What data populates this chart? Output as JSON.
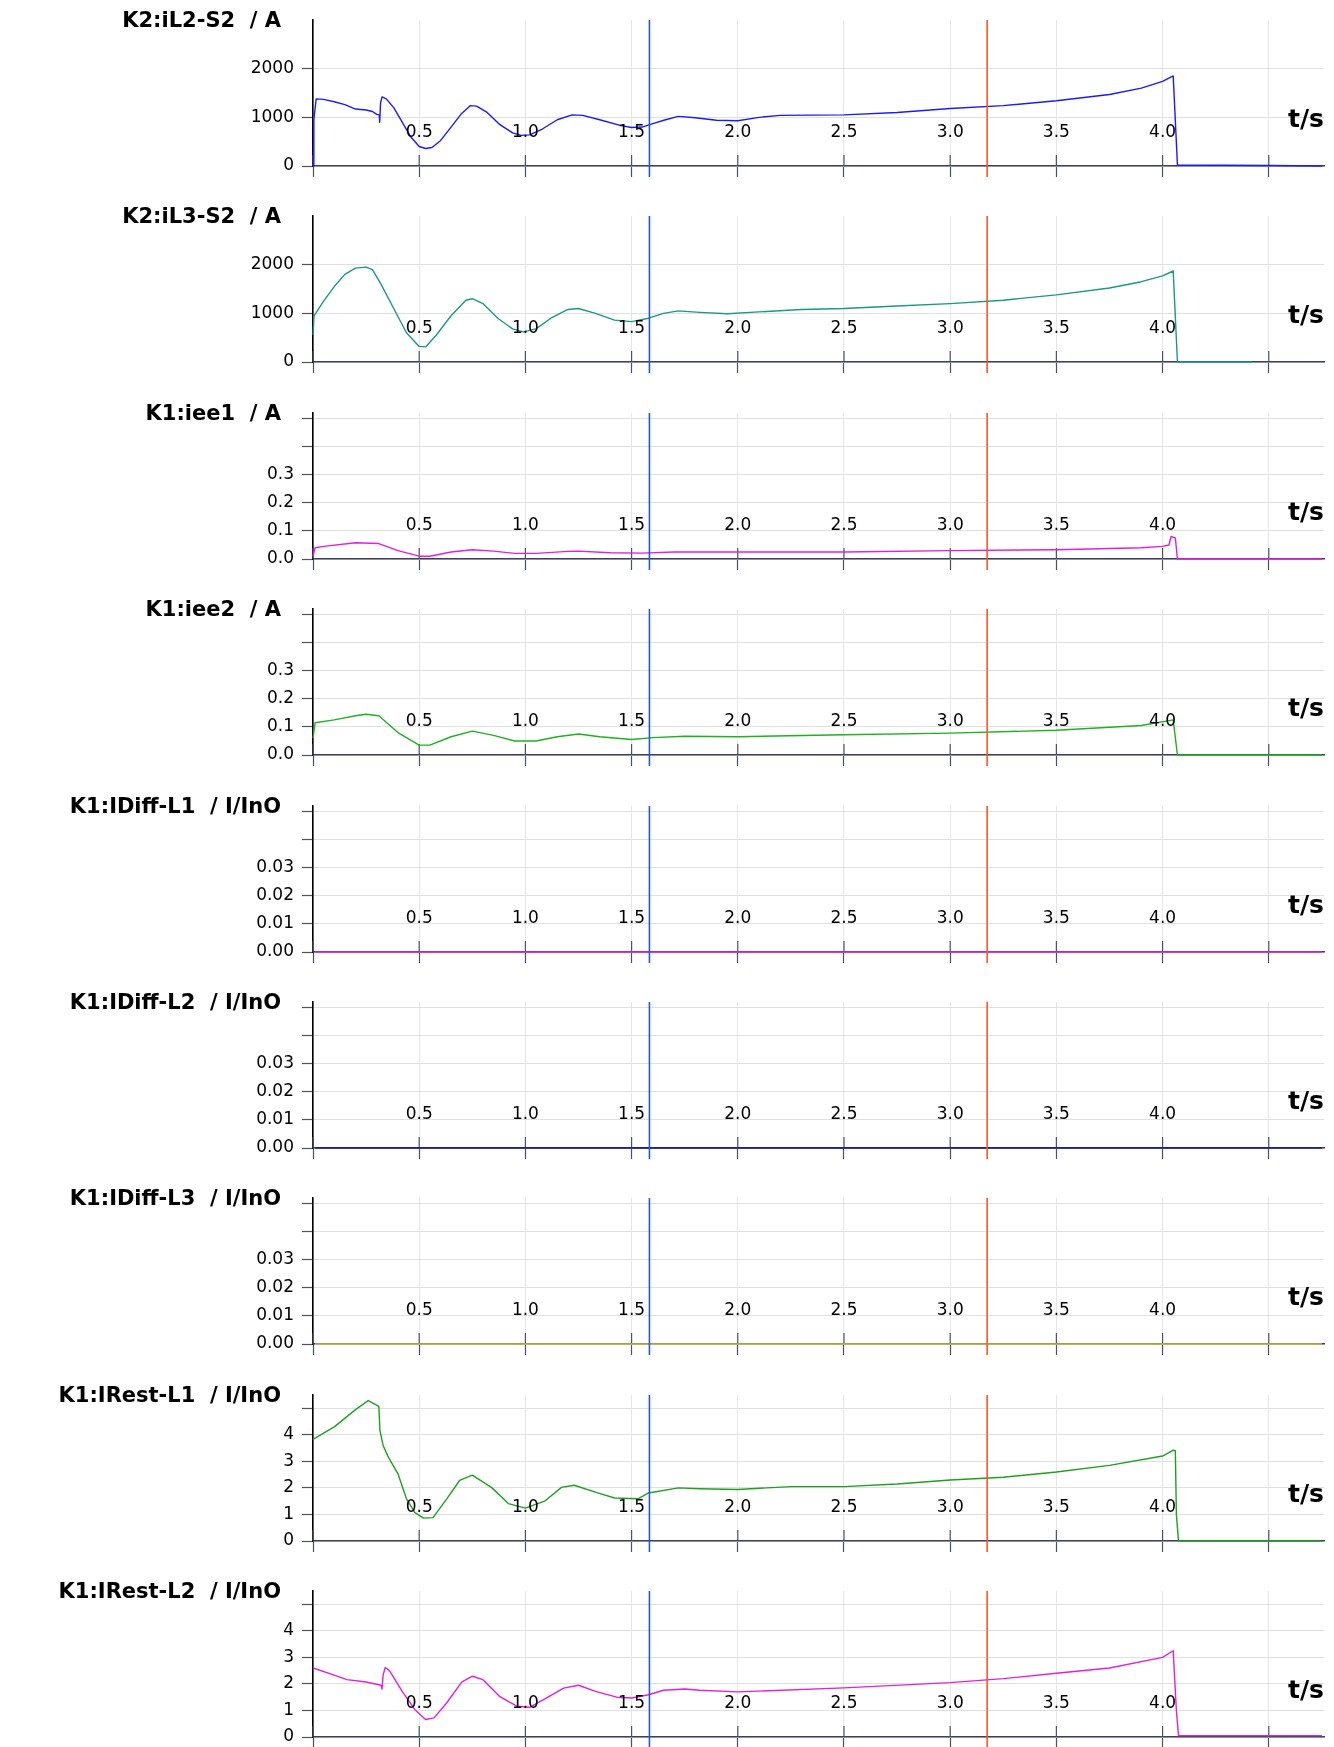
{
  "chart_data": [
    {
      "type": "line",
      "ylabel": "K2:iL2-S2  / A",
      "xlabel": "t/s",
      "xlim": [
        0,
        4.76
      ],
      "xticks": [
        {
          "value": 0,
          "label": null
        },
        0.5,
        {
          "value": 1,
          "label": "1.0"
        },
        1.5,
        {
          "value": 2,
          "label": "2.0"
        },
        2.5,
        {
          "value": 3,
          "label": "3.0"
        },
        3.5,
        {
          "value": 4,
          "label": "4.0"
        },
        {
          "value": 4.5,
          "label": null
        }
      ],
      "ylim": [
        0,
        3000
      ],
      "yticks": [
        0,
        1000,
        2000
      ],
      "grid": true,
      "ref_lines": [
        {
          "axis": "x",
          "value": 1.584,
          "color": "#2255ee"
        },
        {
          "axis": "x",
          "value": 3.174,
          "color": "#ff5522"
        }
      ],
      "series": [
        {
          "color": "#1a1aff",
          "x": [
            0,
            0.004,
            0.015,
            0.05,
            0.1,
            0.15,
            0.2,
            0.25,
            0.28,
            0.3,
            0.312,
            0.314,
            0.318,
            0.325,
            0.345,
            0.38,
            0.42,
            0.46,
            0.5,
            0.53,
            0.56,
            0.6,
            0.65,
            0.7,
            0.74,
            0.77,
            0.82,
            0.88,
            0.94,
            0.98,
            1.02,
            1.08,
            1.15,
            1.22,
            1.27,
            1.35,
            1.45,
            1.5,
            1.55,
            1.6,
            1.66,
            1.72,
            1.8,
            1.9,
            2.0,
            2.1,
            2.2,
            2.5,
            2.75,
            3.0,
            3.25,
            3.5,
            3.75,
            3.9,
            4.0,
            4.05,
            4.07,
            4.5,
            4.75
          ],
          "values": [
            0,
            950,
            1380,
            1370,
            1320,
            1260,
            1170,
            1150,
            1120,
            1060,
            1050,
            900,
            1300,
            1420,
            1380,
            1200,
            900,
            600,
            400,
            360,
            380,
            520,
            800,
            1080,
            1240,
            1230,
            1100,
            850,
            680,
            630,
            640,
            760,
            950,
            1050,
            1040,
            950,
            830,
            790,
            800,
            870,
            950,
            1020,
            990,
            940,
            930,
            1000,
            1040,
            1050,
            1100,
            1180,
            1240,
            1340,
            1470,
            1600,
            1740,
            1850,
            20,
            10,
            0
          ]
        }
      ]
    },
    {
      "type": "line",
      "ylabel": "K2:iL3-S2  / A",
      "xlabel": "t/s",
      "xlim": [
        0,
        4.76
      ],
      "xticks": [
        {
          "value": 0,
          "label": null
        },
        0.5,
        {
          "value": 1,
          "label": "1.0"
        },
        1.5,
        {
          "value": 2,
          "label": "2.0"
        },
        2.5,
        {
          "value": 3,
          "label": "3.0"
        },
        3.5,
        {
          "value": 4,
          "label": "4.0"
        },
        {
          "value": 4.5,
          "label": null
        }
      ],
      "ylim": [
        0,
        3000
      ],
      "yticks": [
        0,
        1000,
        2000
      ],
      "grid": true,
      "ref_lines": [
        {
          "axis": "x",
          "value": 1.584,
          "color": "#2255ee"
        },
        {
          "axis": "x",
          "value": 3.174,
          "color": "#ff5522"
        }
      ],
      "series": [
        {
          "color": "#1a9a80",
          "x": [
            0,
            0.005,
            0.05,
            0.1,
            0.15,
            0.2,
            0.25,
            0.28,
            0.32,
            0.38,
            0.44,
            0.5,
            0.53,
            0.58,
            0.65,
            0.72,
            0.75,
            0.8,
            0.87,
            0.94,
            0.99,
            1.05,
            1.12,
            1.2,
            1.25,
            1.33,
            1.42,
            1.5,
            1.58,
            1.65,
            1.72,
            1.82,
            1.95,
            2.1,
            2.3,
            2.5,
            2.75,
            3.0,
            3.25,
            3.5,
            3.75,
            3.9,
            4.0,
            4.05,
            4.07,
            4.42
          ],
          "values": [
            560,
            950,
            1250,
            1550,
            1800,
            1930,
            1950,
            1900,
            1600,
            1100,
            600,
            320,
            310,
            550,
            950,
            1270,
            1300,
            1200,
            900,
            680,
            620,
            680,
            900,
            1080,
            1100,
            1000,
            860,
            830,
            900,
            1000,
            1050,
            1020,
            990,
            1030,
            1080,
            1100,
            1150,
            1200,
            1270,
            1380,
            1520,
            1650,
            1770,
            1870,
            0,
            0
          ]
        }
      ]
    },
    {
      "type": "line",
      "ylabel": "K1:iee1  / A",
      "xlabel": "t/s",
      "xlim": [
        0,
        4.76
      ],
      "xticks": [
        {
          "value": 0,
          "label": null
        },
        0.5,
        {
          "value": 1,
          "label": "1.0"
        },
        1.5,
        {
          "value": 2,
          "label": "2.0"
        },
        2.5,
        {
          "value": 3,
          "label": "3.0"
        },
        3.5,
        {
          "value": 4,
          "label": "4.0"
        },
        {
          "value": 4.5,
          "label": null
        }
      ],
      "ylim": [
        0,
        0.52
      ],
      "yticks": [
        {
          "value": 0,
          "label": "0.0"
        },
        0.1,
        0.2,
        0.3,
        {
          "value": 0.4,
          "label": null
        },
        {
          "value": 0.5,
          "label": null
        }
      ],
      "grid": true,
      "ref_lines": [
        {
          "axis": "x",
          "value": 1.584,
          "color": "#2255ee"
        },
        {
          "axis": "x",
          "value": 3.174,
          "color": "#ff5522"
        }
      ],
      "series": [
        {
          "color": "#e020e0",
          "x": [
            0,
            0.01,
            0.05,
            0.2,
            0.31,
            0.4,
            0.5,
            0.55,
            0.65,
            0.75,
            0.85,
            0.95,
            1.05,
            1.2,
            1.25,
            1.4,
            1.55,
            1.7,
            2.0,
            2.5,
            3.0,
            3.5,
            3.9,
            4.0,
            4.03,
            4.04,
            4.06,
            4.07,
            4.75
          ],
          "values": [
            0.01,
            0.04,
            0.045,
            0.058,
            0.055,
            0.03,
            0.01,
            0.01,
            0.025,
            0.033,
            0.028,
            0.02,
            0.02,
            0.027,
            0.028,
            0.022,
            0.021,
            0.025,
            0.025,
            0.025,
            0.03,
            0.033,
            0.04,
            0.045,
            0.05,
            0.08,
            0.075,
            0,
            0
          ]
        }
      ]
    },
    {
      "type": "line",
      "ylabel": "K1:iee2  / A",
      "xlabel": "t/s",
      "xlim": [
        0,
        4.76
      ],
      "xticks": [
        {
          "value": 0,
          "label": null
        },
        0.5,
        {
          "value": 1,
          "label": "1.0"
        },
        1.5,
        {
          "value": 2,
          "label": "2.0"
        },
        2.5,
        {
          "value": 3,
          "label": "3.0"
        },
        3.5,
        {
          "value": 4,
          "label": "4.0"
        },
        {
          "value": 4.5,
          "label": null
        }
      ],
      "ylim": [
        0,
        0.52
      ],
      "yticks": [
        {
          "value": 0,
          "label": "0.0"
        },
        0.1,
        0.2,
        0.3,
        {
          "value": 0.4,
          "label": null
        },
        {
          "value": 0.5,
          "label": null
        }
      ],
      "grid": true,
      "ref_lines": [
        {
          "axis": "x",
          "value": 1.584,
          "color": "#2255ee"
        },
        {
          "axis": "x",
          "value": 3.174,
          "color": "#ff5522"
        }
      ],
      "series": [
        {
          "color": "#20b020",
          "x": [
            0,
            0.01,
            0.1,
            0.2,
            0.25,
            0.31,
            0.4,
            0.5,
            0.55,
            0.65,
            0.75,
            0.85,
            0.95,
            1.05,
            1.15,
            1.25,
            1.35,
            1.5,
            1.6,
            1.75,
            2.0,
            2.5,
            3.0,
            3.5,
            3.9,
            4.05,
            4.07,
            4.75
          ],
          "values": [
            0.06,
            0.115,
            0.125,
            0.14,
            0.145,
            0.14,
            0.08,
            0.035,
            0.035,
            0.065,
            0.085,
            0.07,
            0.05,
            0.05,
            0.065,
            0.075,
            0.065,
            0.055,
            0.062,
            0.067,
            0.065,
            0.072,
            0.078,
            0.088,
            0.105,
            0.125,
            0,
            0
          ]
        }
      ]
    },
    {
      "type": "line",
      "ylabel": "K1:IDiff-L1  / I/InO",
      "xlabel": "t/s",
      "xlim": [
        0,
        4.76
      ],
      "xticks": [
        {
          "value": 0,
          "label": null
        },
        0.5,
        {
          "value": 1,
          "label": "1.0"
        },
        1.5,
        {
          "value": 2,
          "label": "2.0"
        },
        2.5,
        {
          "value": 3,
          "label": "3.0"
        },
        3.5,
        {
          "value": 4,
          "label": "4.0"
        },
        {
          "value": 4.5,
          "label": null
        }
      ],
      "ylim": [
        0,
        0.052
      ],
      "yticks": [
        {
          "value": 0,
          "label": "0.00"
        },
        0.01,
        0.02,
        0.03,
        {
          "value": 0.04,
          "label": null
        },
        {
          "value": 0.05,
          "label": null
        }
      ],
      "grid": true,
      "ref_lines": [
        {
          "axis": "x",
          "value": 1.584,
          "color": "#2255ee"
        },
        {
          "axis": "x",
          "value": 3.174,
          "color": "#ff5522"
        }
      ],
      "series": [
        {
          "color": "#e020e0",
          "x": [
            0.01,
            4.75
          ],
          "values": [
            0,
            0
          ]
        }
      ]
    },
    {
      "type": "line",
      "ylabel": "K1:IDiff-L2  / I/InO",
      "xlabel": "t/s",
      "xlim": [
        0,
        4.76
      ],
      "xticks": [
        {
          "value": 0,
          "label": null
        },
        0.5,
        {
          "value": 1,
          "label": "1.0"
        },
        1.5,
        {
          "value": 2,
          "label": "2.0"
        },
        2.5,
        {
          "value": 3,
          "label": "3.0"
        },
        3.5,
        {
          "value": 4,
          "label": "4.0"
        },
        {
          "value": 4.5,
          "label": null
        }
      ],
      "ylim": [
        0,
        0.052
      ],
      "yticks": [
        {
          "value": 0,
          "label": "0.00"
        },
        0.01,
        0.02,
        0.03,
        {
          "value": 0.04,
          "label": null
        },
        {
          "value": 0.05,
          "label": null
        }
      ],
      "grid": true,
      "ref_lines": [
        {
          "axis": "x",
          "value": 1.584,
          "color": "#2255ee"
        },
        {
          "axis": "x",
          "value": 3.174,
          "color": "#ff5522"
        }
      ],
      "series": [
        {
          "color": "#1a1a8a",
          "x": [
            0.01,
            4.75
          ],
          "values": [
            0,
            0
          ]
        }
      ]
    },
    {
      "type": "line",
      "ylabel": "K1:IDiff-L3  / I/InO",
      "xlabel": "t/s",
      "xlim": [
        0,
        4.76
      ],
      "xticks": [
        {
          "value": 0,
          "label": null
        },
        0.5,
        {
          "value": 1,
          "label": "1.0"
        },
        1.5,
        {
          "value": 2,
          "label": "2.0"
        },
        2.5,
        {
          "value": 3,
          "label": "3.0"
        },
        3.5,
        {
          "value": 4,
          "label": "4.0"
        },
        {
          "value": 4.5,
          "label": null
        }
      ],
      "ylim": [
        0,
        0.052
      ],
      "yticks": [
        {
          "value": 0,
          "label": "0.00"
        },
        0.01,
        0.02,
        0.03,
        {
          "value": 0.04,
          "label": null
        },
        {
          "value": 0.05,
          "label": null
        }
      ],
      "grid": true,
      "ref_lines": [
        {
          "axis": "x",
          "value": 1.584,
          "color": "#2255ee"
        },
        {
          "axis": "x",
          "value": 3.174,
          "color": "#ff5522"
        }
      ],
      "series": [
        {
          "color": "#c8c040",
          "x": [
            0.01,
            4.75
          ],
          "values": [
            0,
            0
          ]
        }
      ]
    },
    {
      "type": "line",
      "ylabel": "K1:IRest-L1  / I/InO",
      "xlabel": "t/s",
      "xlim": [
        0,
        4.76
      ],
      "xticks": [
        {
          "value": 0,
          "label": null
        },
        0.5,
        {
          "value": 1,
          "label": "1.0"
        },
        1.5,
        {
          "value": 2,
          "label": "2.0"
        },
        2.5,
        {
          "value": 3,
          "label": "3.0"
        },
        3.5,
        {
          "value": 4,
          "label": "4.0"
        },
        {
          "value": 4.5,
          "label": null
        }
      ],
      "ylim": [
        0,
        5.5
      ],
      "yticks": [
        0,
        1,
        2,
        3,
        4,
        {
          "value": 5,
          "label": null
        }
      ],
      "grid": true,
      "ref_lines": [
        {
          "axis": "x",
          "value": 1.584,
          "color": "#2255ee"
        },
        {
          "axis": "x",
          "value": 3.174,
          "color": "#ff5522"
        }
      ],
      "series": [
        {
          "color": "#20a020",
          "x": [
            0,
            0.1,
            0.2,
            0.26,
            0.31,
            0.315,
            0.33,
            0.356,
            0.4,
            0.44,
            0.48,
            0.52,
            0.565,
            0.63,
            0.69,
            0.75,
            0.84,
            0.92,
            1.0,
            1.09,
            1.17,
            1.23,
            1.34,
            1.42,
            1.53,
            1.58,
            1.72,
            1.82,
            2.0,
            2.25,
            2.5,
            2.75,
            3.0,
            3.25,
            3.5,
            3.75,
            4.0,
            4.05,
            4.06,
            4.065,
            4.075,
            4.75
          ],
          "values": [
            3.83,
            4.3,
            4.95,
            5.29,
            5.07,
            4.17,
            3.6,
            3.14,
            2.53,
            1.59,
            1.07,
            0.86,
            0.88,
            1.59,
            2.28,
            2.48,
            2.02,
            1.41,
            1.24,
            1.5,
            2.02,
            2.1,
            1.81,
            1.62,
            1.59,
            1.81,
            2.0,
            1.97,
            1.94,
            2.05,
            2.05,
            2.15,
            2.3,
            2.4,
            2.6,
            2.85,
            3.2,
            3.42,
            3.4,
            1.0,
            0,
            0
          ]
        }
      ]
    },
    {
      "type": "line",
      "ylabel": "K1:IRest-L2  / I/InO",
      "xlabel": "t/s",
      "xlim": [
        0,
        4.76
      ],
      "xticks": [
        {
          "value": 0,
          "label": null
        },
        0.5,
        {
          "value": 1,
          "label": "1.0"
        },
        1.5,
        {
          "value": 2,
          "label": "2.0"
        },
        2.5,
        {
          "value": 3,
          "label": "3.0"
        },
        3.5,
        {
          "value": 4,
          "label": "4.0"
        },
        {
          "value": 4.5,
          "label": null
        }
      ],
      "ylim": [
        0,
        5.5
      ],
      "yticks": [
        0,
        1,
        2,
        3,
        4,
        {
          "value": 5,
          "label": null
        }
      ],
      "grid": true,
      "ref_lines": [
        {
          "axis": "x",
          "value": 1.584,
          "color": "#2255ee"
        },
        {
          "axis": "x",
          "value": 3.174,
          "color": "#ff5522"
        }
      ],
      "series": [
        {
          "color": "#e020e0",
          "x": [
            0,
            0.1,
            0.16,
            0.25,
            0.32,
            0.325,
            0.33,
            0.34,
            0.36,
            0.42,
            0.48,
            0.53,
            0.57,
            0.63,
            0.7,
            0.75,
            0.8,
            0.88,
            0.96,
            1.02,
            1.1,
            1.18,
            1.25,
            1.33,
            1.43,
            1.5,
            1.58,
            1.65,
            1.75,
            1.82,
            2.0,
            2.5,
            3.0,
            3.25,
            3.5,
            3.75,
            4.0,
            4.05,
            4.065,
            4.075,
            4.75
          ],
          "values": [
            2.6,
            2.33,
            2.16,
            2.07,
            1.95,
            1.81,
            2.33,
            2.62,
            2.5,
            1.72,
            1.03,
            0.66,
            0.72,
            1.29,
            2.07,
            2.29,
            2.16,
            1.52,
            1.16,
            1.12,
            1.47,
            1.84,
            1.95,
            1.72,
            1.5,
            1.47,
            1.59,
            1.76,
            1.81,
            1.76,
            1.7,
            1.85,
            2.05,
            2.2,
            2.4,
            2.6,
            3.0,
            3.25,
            1.0,
            0.05,
            0.05
          ]
        }
      ]
    }
  ]
}
